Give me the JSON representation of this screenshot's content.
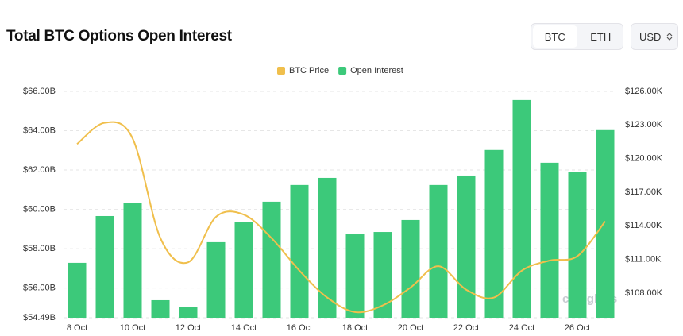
{
  "ui": {
    "title": "Total BTC Options Open Interest",
    "tabs": [
      "BTC",
      "ETH"
    ],
    "currency": "USD"
  },
  "chart_data": {
    "type": "bar",
    "categories": [
      "8 Oct",
      null,
      "10 Oct",
      null,
      "12 Oct",
      null,
      "14 Oct",
      null,
      "16 Oct",
      null,
      "18 Oct",
      null,
      "20 Oct",
      null,
      "22 Oct",
      null,
      "24 Oct",
      null,
      "26 Oct",
      null
    ],
    "series": [
      {
        "name": "BTC Price",
        "type": "line",
        "axis": "y2",
        "color": "#f0bf4c",
        "values": [
          121.3,
          123.2,
          121.8,
          112.9,
          110.75,
          114.8,
          115.0,
          112.9,
          110.0,
          107.6,
          106.3,
          106.9,
          108.5,
          110.4,
          108.3,
          107.6,
          110.0,
          110.9,
          111.3,
          114.4
        ]
      },
      {
        "name": "Open Interest",
        "type": "bar",
        "color": "#3cc97a",
        "values": [
          57.28,
          59.66,
          60.31,
          55.38,
          55.02,
          58.33,
          59.34,
          60.39,
          61.24,
          61.6,
          58.73,
          58.85,
          59.46,
          61.24,
          61.72,
          63.02,
          65.56,
          62.37,
          61.92,
          64.03
        ]
      }
    ],
    "ylim": [
      54.49,
      66.0
    ],
    "yticks": [
      {
        "value": 54.49,
        "label": "$54.49B"
      },
      {
        "value": 56,
        "label": "$56.00B"
      },
      {
        "value": 58,
        "label": "$58.00B"
      },
      {
        "value": 60,
        "label": "$60.00B"
      },
      {
        "value": 62,
        "label": "$62.00B"
      },
      {
        "value": 64,
        "label": "$64.00B"
      },
      {
        "value": 66,
        "label": "$66.00B"
      }
    ],
    "y2lim": [
      105.8,
      126.0
    ],
    "y2ticks": [
      {
        "value": 108,
        "label": "$108.00K"
      },
      {
        "value": 111,
        "label": "$111.00K"
      },
      {
        "value": 114,
        "label": "$114.00K"
      },
      {
        "value": 117,
        "label": "$117.00K"
      },
      {
        "value": 120,
        "label": "$120.00K"
      },
      {
        "value": 123,
        "label": "$123.00K"
      },
      {
        "value": 126,
        "label": "$126.00K"
      }
    ],
    "grid": true,
    "legend": "top",
    "watermark": "coinglass"
  }
}
